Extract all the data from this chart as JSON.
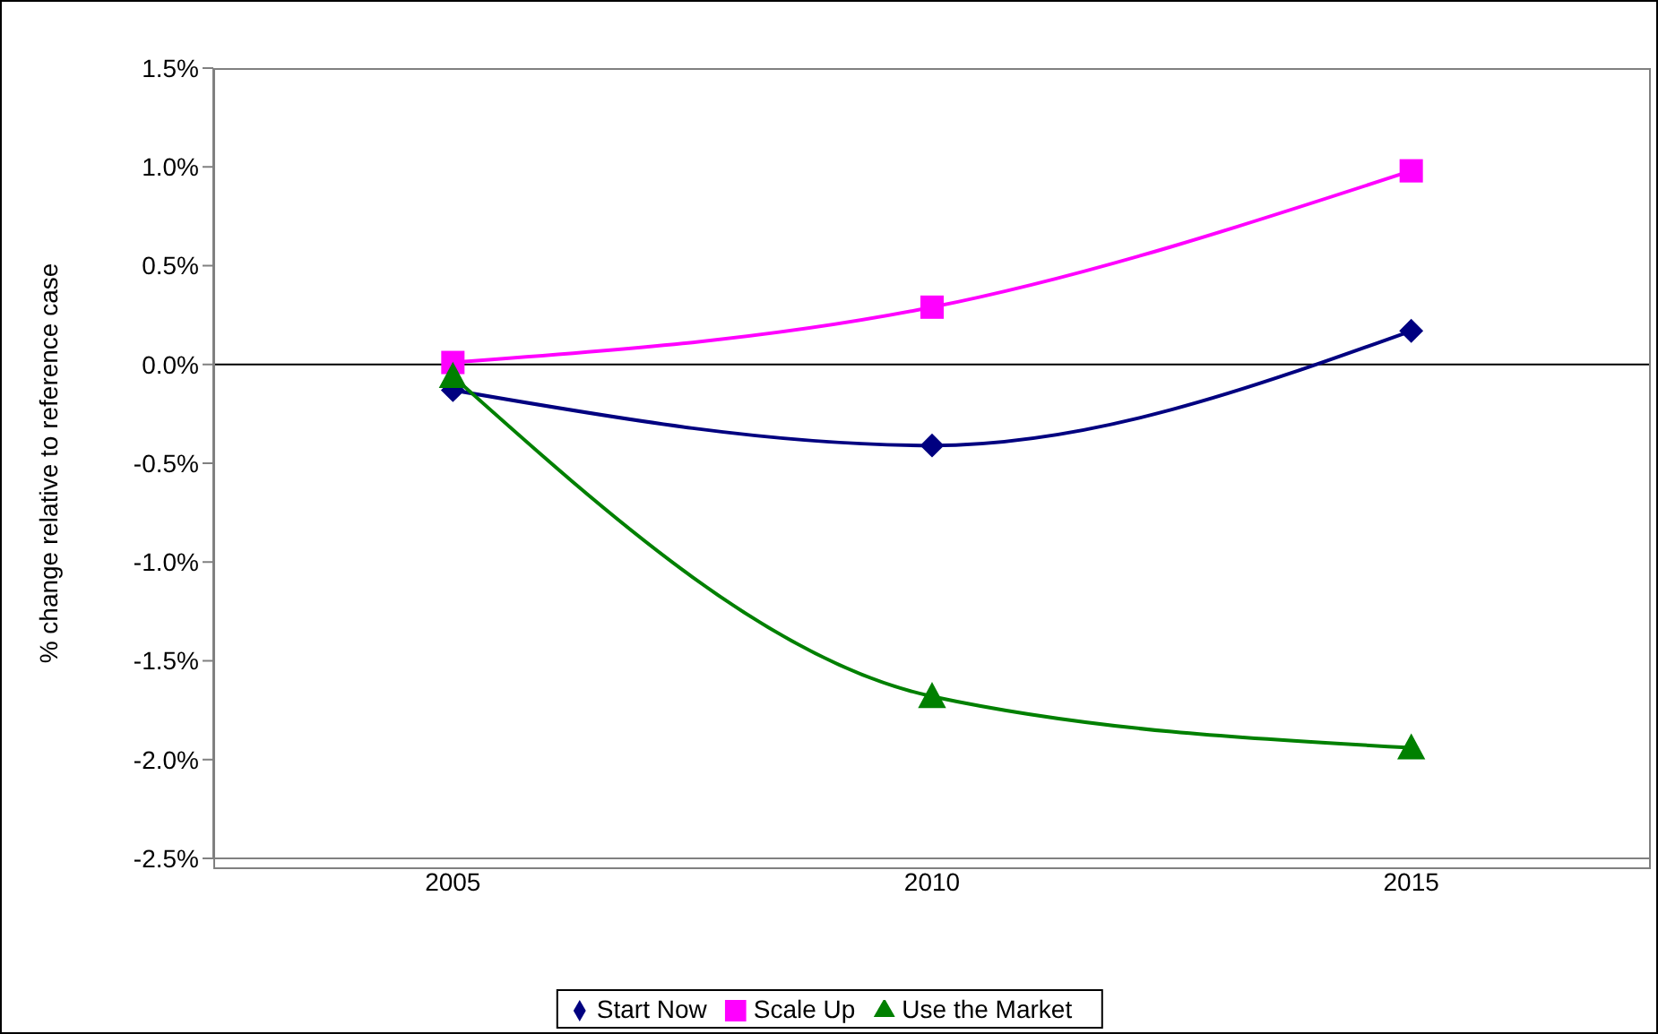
{
  "chart_data": {
    "type": "line",
    "ylabel": "% change relative to reference case",
    "categories": [
      "2005",
      "2010",
      "2015"
    ],
    "series": [
      {
        "name": "Start Now",
        "color": "#000080",
        "marker": "diamond",
        "values": [
          -0.13,
          -0.41,
          0.17
        ]
      },
      {
        "name": "Scale Up",
        "color": "#ff00ff",
        "marker": "square",
        "values": [
          0.01,
          0.29,
          0.98
        ]
      },
      {
        "name": "Use the Market",
        "color": "#008000",
        "marker": "triangle",
        "values": [
          -0.06,
          -1.68,
          -1.94
        ]
      }
    ],
    "ylim": [
      -2.5,
      1.5
    ],
    "yticks": [
      {
        "value": -2.5,
        "label": "-2.5%"
      },
      {
        "value": -2.0,
        "label": "-2.0%"
      },
      {
        "value": -1.5,
        "label": "-1.5%"
      },
      {
        "value": -1.0,
        "label": "-1.0%"
      },
      {
        "value": -0.5,
        "label": "-0.5%"
      },
      {
        "value": 0,
        "label": "0.0%"
      },
      {
        "value": 0.5,
        "label": "0.5%"
      },
      {
        "value": 1.0,
        "label": "1.0%"
      },
      {
        "value": 1.5,
        "label": "1.5%"
      }
    ],
    "ref_lines": [
      {
        "axis": "y",
        "value": 0,
        "color": "#000000"
      }
    ],
    "grid": false,
    "legend": "bottom",
    "line_style": "solid"
  }
}
